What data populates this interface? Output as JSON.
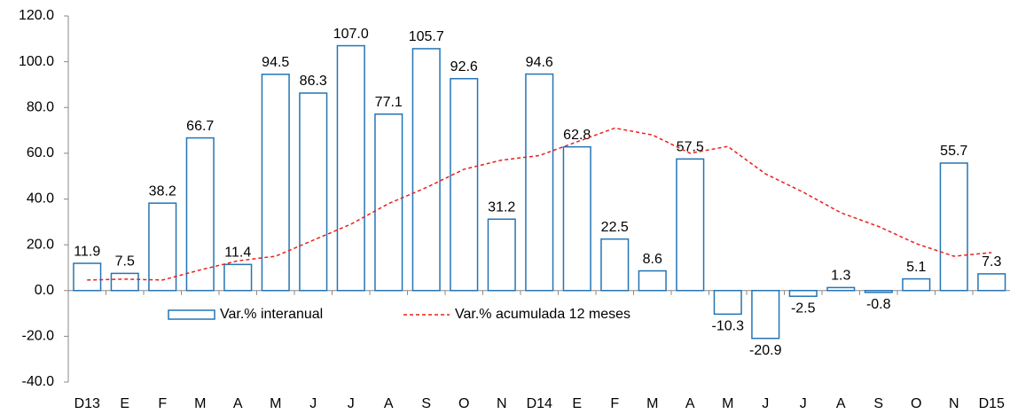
{
  "chart_data": {
    "type": "bar",
    "categories": [
      "D13",
      "E",
      "F",
      "M",
      "A",
      "M",
      "J",
      "J",
      "A",
      "S",
      "O",
      "N",
      "D14",
      "E",
      "F",
      "M",
      "A",
      "M",
      "J",
      "J",
      "A",
      "S",
      "O",
      "N",
      "D15"
    ],
    "series": [
      {
        "name": "Var.% interanual",
        "type": "bar",
        "color": "#2474b5",
        "values": [
          11.9,
          7.5,
          38.2,
          66.7,
          11.4,
          94.5,
          86.3,
          107.0,
          77.1,
          105.7,
          92.6,
          31.2,
          94.6,
          62.8,
          22.5,
          8.6,
          57.5,
          -10.3,
          -20.9,
          -2.5,
          1.3,
          -0.8,
          5.1,
          55.7,
          7.3
        ],
        "value_labels": [
          "11.9",
          "7.5",
          "38.2",
          "66.7",
          "11.4",
          "94.5",
          "86.3",
          "107.0",
          "77.1",
          "105.7",
          "92.6",
          "31.2",
          "94.6",
          "62.8",
          "22.5",
          "8.6",
          "57.5",
          "-10.3",
          "-20.9",
          "-2.5",
          "1.3",
          "-0.8",
          "5.1",
          "55.7",
          "7.3"
        ]
      },
      {
        "name": "Var.% acumulada 12 meses",
        "type": "line",
        "color": "#e8201c",
        "values": [
          4.6,
          5,
          4.6,
          9,
          13,
          15,
          22,
          29,
          38,
          45,
          53,
          57,
          59,
          65,
          71,
          68,
          60,
          63,
          51,
          43,
          34,
          28,
          20.5,
          15,
          16.6
        ]
      }
    ],
    "ylim": [
      -40,
      120
    ],
    "yticks": [
      {
        "value": -40,
        "label": "-40.0"
      },
      {
        "value": -20,
        "label": "-20.0"
      },
      {
        "value": 0,
        "label": "0.0"
      },
      {
        "value": 20,
        "label": "20.0"
      },
      {
        "value": 40,
        "label": "40.0"
      },
      {
        "value": 60,
        "label": "60.0"
      },
      {
        "value": 80,
        "label": "80.0"
      },
      {
        "value": 100,
        "label": "100.0"
      },
      {
        "value": 120,
        "label": "120.0"
      }
    ],
    "legend": "lower-left"
  }
}
